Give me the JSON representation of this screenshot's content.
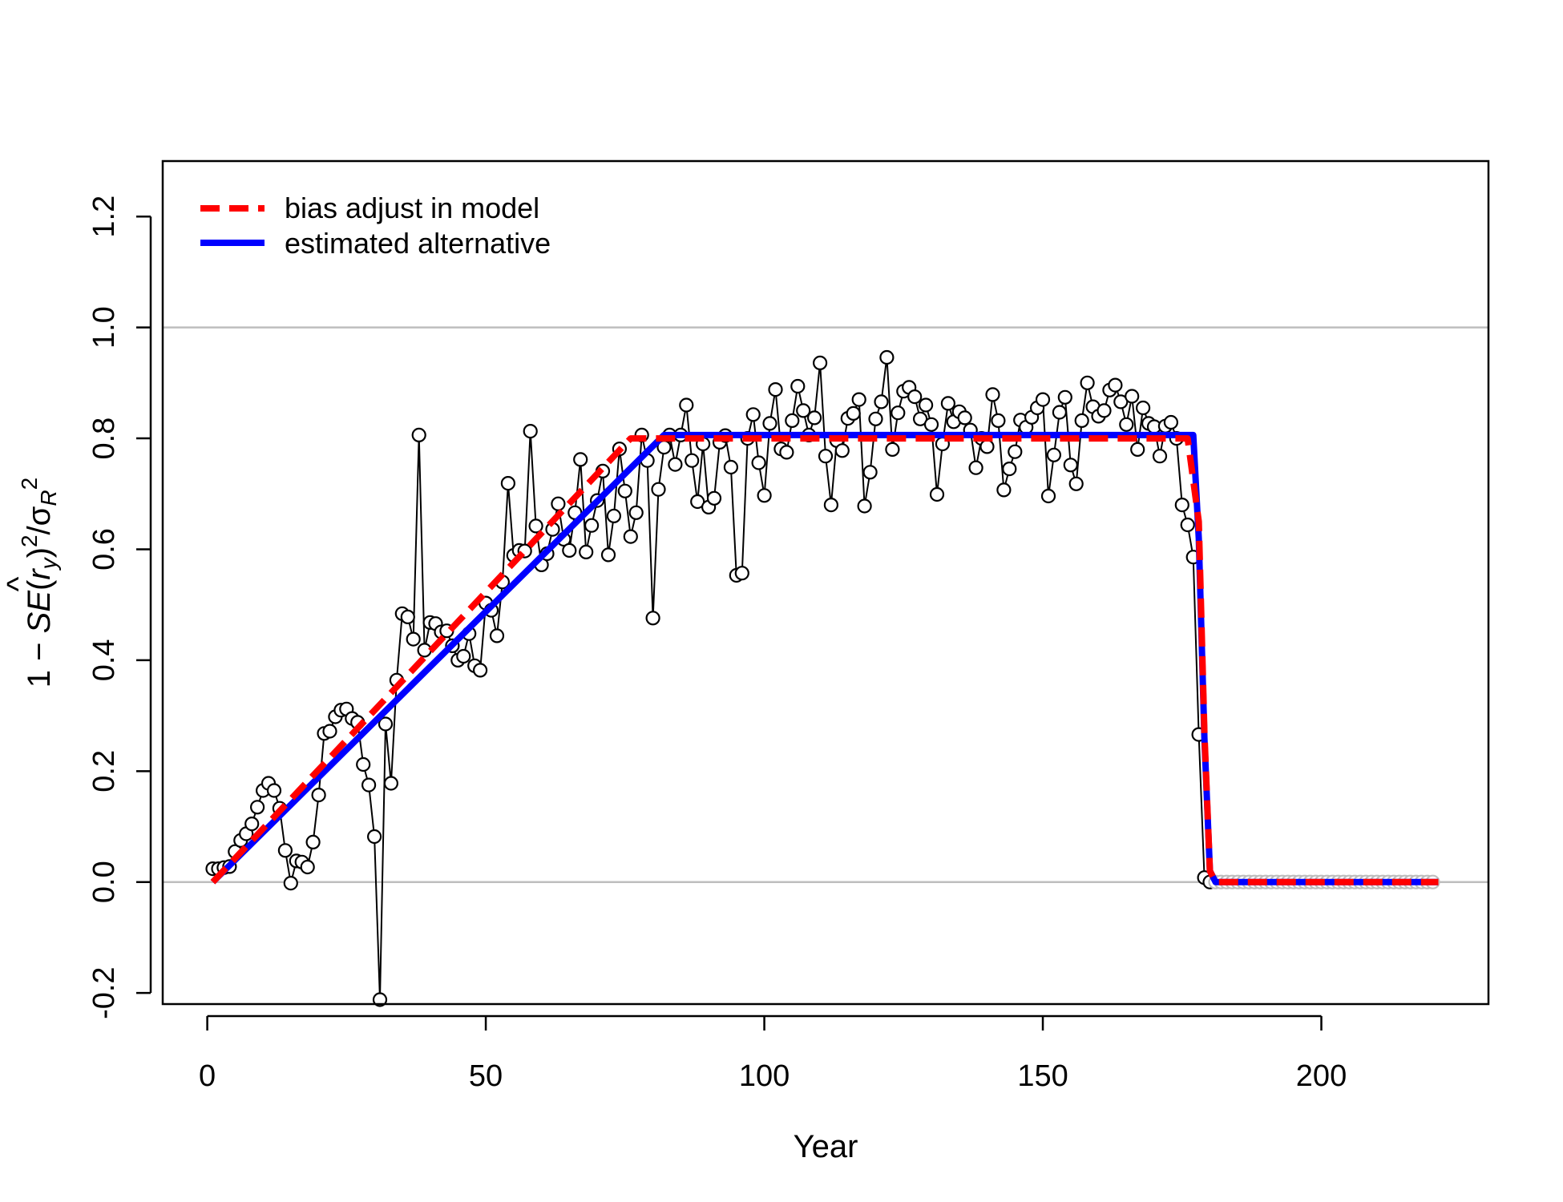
{
  "chart_data": {
    "type": "line",
    "xlabel": "Year",
    "ylabel": {
      "prefix": "1 − ",
      "se": "SE",
      "paren_open": "(",
      "hat": "^",
      "r": "r",
      "sub_y": "y",
      "paren_close": ")",
      "sq": "2",
      "slash": "/",
      "sigma": "σ",
      "sub_R": "R",
      "sq2": "2"
    },
    "xlim": [
      -8,
      230
    ],
    "ylim": [
      -0.22,
      1.3
    ],
    "x_ticks": [
      0,
      50,
      100,
      150,
      200
    ],
    "y_ticks": [
      -0.2,
      0.0,
      0.2,
      0.4,
      0.6,
      0.8,
      1.0,
      1.2
    ],
    "x_tick_labels": [
      "0",
      "50",
      "100",
      "150",
      "200"
    ],
    "y_tick_labels": [
      "-0.2",
      "0.0",
      "0.2",
      "0.4",
      "0.6",
      "0.8",
      "1.0",
      "1.2"
    ],
    "reference_lines": [
      0.0,
      1.0
    ],
    "reference_color": "#bebebe",
    "points_x_start": 1,
    "points": [
      0.024,
      0.024,
      0.026,
      0.028,
      0.055,
      0.075,
      0.087,
      0.105,
      0.135,
      0.165,
      0.178,
      0.165,
      0.133,
      0.057,
      -0.002,
      0.038,
      0.036,
      0.027,
      0.072,
      0.157,
      0.268,
      0.272,
      0.298,
      0.31,
      0.312,
      0.295,
      0.288,
      0.212,
      0.175,
      0.082,
      -0.212,
      0.285,
      0.178,
      0.364,
      0.484,
      0.478,
      0.438,
      0.806,
      0.418,
      0.468,
      0.466,
      0.451,
      0.453,
      0.426,
      0.4,
      0.407,
      0.448,
      0.39,
      0.382,
      0.503,
      0.49,
      0.444,
      0.541,
      0.719,
      0.589,
      0.598,
      0.597,
      0.813,
      0.642,
      0.572,
      0.592,
      0.636,
      0.682,
      0.618,
      0.598,
      0.666,
      0.762,
      0.595,
      0.643,
      0.688,
      0.741,
      0.59,
      0.66,
      0.781,
      0.705,
      0.623,
      0.666,
      0.806,
      0.76,
      0.476,
      0.708,
      0.784,
      0.806,
      0.753,
      0.806,
      0.86,
      0.76,
      0.686,
      0.79,
      0.676,
      0.692,
      0.793,
      0.805,
      0.748,
      0.553,
      0.557,
      0.8,
      0.843,
      0.756,
      0.697,
      0.827,
      0.888,
      0.781,
      0.775,
      0.832,
      0.894,
      0.85,
      0.806,
      0.837,
      0.936,
      0.768,
      0.68,
      0.796,
      0.778,
      0.836,
      0.845,
      0.87,
      0.678,
      0.739,
      0.835,
      0.866,
      0.946,
      0.78,
      0.846,
      0.885,
      0.892,
      0.875,
      0.835,
      0.86,
      0.825,
      0.699,
      0.79,
      0.863,
      0.83,
      0.848,
      0.837,
      0.815,
      0.747,
      0.8,
      0.785,
      0.879,
      0.832,
      0.707,
      0.745,
      0.776,
      0.833,
      0.82,
      0.838,
      0.855,
      0.87,
      0.696,
      0.77,
      0.847,
      0.874,
      0.752,
      0.718,
      0.832,
      0.9,
      0.857,
      0.84,
      0.85,
      0.887,
      0.896,
      0.866,
      0.825,
      0.876,
      0.78,
      0.855,
      0.827,
      0.821,
      0.768,
      0.822,
      0.829,
      0.8,
      0.68,
      0.644,
      0.586,
      0.266,
      0.008,
      0.0,
      0.0,
      0.0,
      0.0,
      0.0,
      0.0,
      0.0,
      0.0,
      0.0,
      0.0,
      0.0,
      0.0,
      0.0,
      0.0,
      0.0,
      0.0,
      0.0,
      0.0,
      0.0,
      0.0,
      0.0,
      0.0,
      0.0,
      0.0,
      0.0,
      0.0,
      0.0,
      0.0,
      0.0,
      0.0,
      0.0,
      0.0,
      0.0,
      0.0,
      0.0,
      0.0,
      0.0,
      0.0,
      0.0,
      0.0,
      0.0
    ],
    "series": [
      {
        "name": "bias adjust in model",
        "color": "#ff0000",
        "style": "dashed",
        "x": [
          1,
          76,
          176,
          178,
          179,
          180,
          181,
          221
        ],
        "y": [
          0.0,
          0.8,
          0.8,
          0.65,
          0.27,
          0.02,
          0.0,
          0.0
        ]
      },
      {
        "name": "estimated alternative",
        "color": "#0000ff",
        "style": "solid",
        "x": [
          1,
          82,
          177,
          178,
          179,
          180,
          181,
          221
        ],
        "y": [
          0.0,
          0.806,
          0.806,
          0.62,
          0.26,
          0.02,
          0.0,
          0.0
        ]
      }
    ],
    "legend": {
      "position": "top-left",
      "items": [
        {
          "label": "bias adjust in model",
          "color": "#ff0000",
          "style": "dashed"
        },
        {
          "label": "estimated alternative",
          "color": "#0000ff",
          "style": "solid"
        }
      ]
    },
    "grid": false
  }
}
